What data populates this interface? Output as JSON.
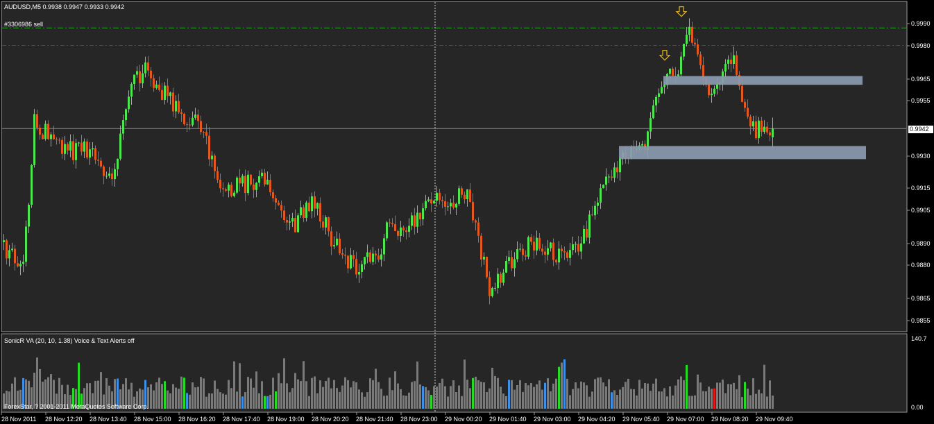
{
  "chart_header": {
    "symbol_line": "AUDUSD,M5  0.9938 0.9947 0.9933 0.9942",
    "order_label": "#3306986 sell"
  },
  "price_axis": {
    "labels": [
      "0.9990",
      "0.9980",
      "0.9965",
      "0.9955",
      "0.9942",
      "0.9930",
      "0.9915",
      "0.9905",
      "0.9890",
      "0.9880",
      "0.9865",
      "0.9855"
    ],
    "current_price": "0.9942"
  },
  "time_axis": {
    "labels": [
      "28 Nov 2011",
      "28 Nov 12:20",
      "28 Nov 13:40",
      "28 Nov 15:00",
      "28 Nov 16:20",
      "28 Nov 17:40",
      "28 Nov 19:00",
      "28 Nov 20:20",
      "28 Nov 21:40",
      "28 Nov 23:00",
      "29 Nov 00:20",
      "29 Nov 01:40",
      "29 Nov 03:00",
      "29 Nov 04:20",
      "29 Nov 05:40",
      "29 Nov 07:00",
      "29 Nov 08:20",
      "29 Nov 09:40"
    ]
  },
  "indicator": {
    "title": "SonicR VA  (20, 10, 1.38)   Voice & Text Alerts off",
    "max_label": "140.7",
    "min_label": "0.00",
    "copyright": "ForexStar, ? 2001-2011 MetaQuotes Software Corp."
  },
  "colors": {
    "background": "#000000",
    "chart_background": "#262626",
    "bull": "#4ee64e",
    "bear": "#e4571e",
    "sell_level": "#21a821",
    "stop_level": "#c01818",
    "zone": "#8a9aaf",
    "arrow": "#e8b91b",
    "volume_neutral": "#7a7a7a",
    "volume_blue": "#3d8fe8",
    "volume_green": "#22dd22",
    "volume_red": "#e01818"
  },
  "chart_data": {
    "type": "candlestick",
    "symbol": "AUDUSD",
    "timeframe": "M5",
    "ohlc_current": {
      "open": 0.9938,
      "high": 0.9947,
      "low": 0.9933,
      "close": 0.9942
    },
    "y_axis_ticks": [
      0.999,
      0.998,
      0.9965,
      0.9955,
      0.993,
      0.9915,
      0.9905,
      0.989,
      0.988,
      0.9865,
      0.9855
    ],
    "levels": {
      "sell_entry": 0.9988,
      "stop": 0.998,
      "current": 0.9942
    },
    "zones": [
      {
        "from_time": "29 Nov 07:00",
        "to_time": "29 Nov 09:40+",
        "low": 0.9962,
        "high": 0.9966
      },
      {
        "from_time": "29 Nov 05:40",
        "to_time": "29 Nov 09:40+",
        "low": 0.9928,
        "high": 0.9934
      }
    ],
    "arrows": [
      {
        "time": "29 Nov 07:00",
        "price": 0.9972,
        "direction": "down"
      },
      {
        "time": "29 Nov 07:30",
        "price": 0.9992,
        "direction": "down"
      }
    ],
    "path_points": [
      {
        "t": "28 Nov 11:00",
        "price": 0.989
      },
      {
        "t": "28 Nov 11:40",
        "price": 0.9878
      },
      {
        "t": "28 Nov 12:00",
        "price": 0.9945
      },
      {
        "t": "28 Nov 12:20",
        "price": 0.994
      },
      {
        "t": "28 Nov 13:00",
        "price": 0.9932
      },
      {
        "t": "28 Nov 13:40",
        "price": 0.9932
      },
      {
        "t": "28 Nov 14:20",
        "price": 0.9918
      },
      {
        "t": "28 Nov 15:00",
        "price": 0.9965
      },
      {
        "t": "28 Nov 15:20",
        "price": 0.9968
      },
      {
        "t": "28 Nov 16:20",
        "price": 0.995
      },
      {
        "t": "28 Nov 17:00",
        "price": 0.9942
      },
      {
        "t": "28 Nov 17:40",
        "price": 0.9915
      },
      {
        "t": "28 Nov 19:00",
        "price": 0.9918
      },
      {
        "t": "28 Nov 19:40",
        "price": 0.9895
      },
      {
        "t": "28 Nov 20:20",
        "price": 0.991
      },
      {
        "t": "28 Nov 21:00",
        "price": 0.989
      },
      {
        "t": "28 Nov 21:40",
        "price": 0.9878
      },
      {
        "t": "28 Nov 22:20",
        "price": 0.9885
      },
      {
        "t": "28 Nov 22:40",
        "price": 0.99
      },
      {
        "t": "28 Nov 23:00",
        "price": 0.9895
      },
      {
        "t": "29 Nov 00:00",
        "price": 0.991
      },
      {
        "t": "29 Nov 00:20",
        "price": 0.9905
      },
      {
        "t": "29 Nov 01:00",
        "price": 0.9915
      },
      {
        "t": "29 Nov 01:40",
        "price": 0.9868
      },
      {
        "t": "29 Nov 02:20",
        "price": 0.9882
      },
      {
        "t": "29 Nov 03:00",
        "price": 0.989
      },
      {
        "t": "29 Nov 03:40",
        "price": 0.9885
      },
      {
        "t": "29 Nov 04:20",
        "price": 0.9885
      },
      {
        "t": "29 Nov 05:00",
        "price": 0.9915
      },
      {
        "t": "29 Nov 05:40",
        "price": 0.993
      },
      {
        "t": "29 Nov 06:20",
        "price": 0.9935
      },
      {
        "t": "29 Nov 06:40",
        "price": 0.9955
      },
      {
        "t": "29 Nov 07:00",
        "price": 0.9965
      },
      {
        "t": "29 Nov 07:20",
        "price": 0.9968
      },
      {
        "t": "29 Nov 07:40",
        "price": 0.999
      },
      {
        "t": "29 Nov 08:00",
        "price": 0.997
      },
      {
        "t": "29 Nov 08:20",
        "price": 0.9958
      },
      {
        "t": "29 Nov 08:40",
        "price": 0.997
      },
      {
        "t": "29 Nov 09:00",
        "price": 0.9975
      },
      {
        "t": "29 Nov 09:20",
        "price": 0.995
      },
      {
        "t": "29 Nov 09:40",
        "price": 0.9942
      }
    ],
    "volume_range": [
      0,
      140.7
    ]
  }
}
